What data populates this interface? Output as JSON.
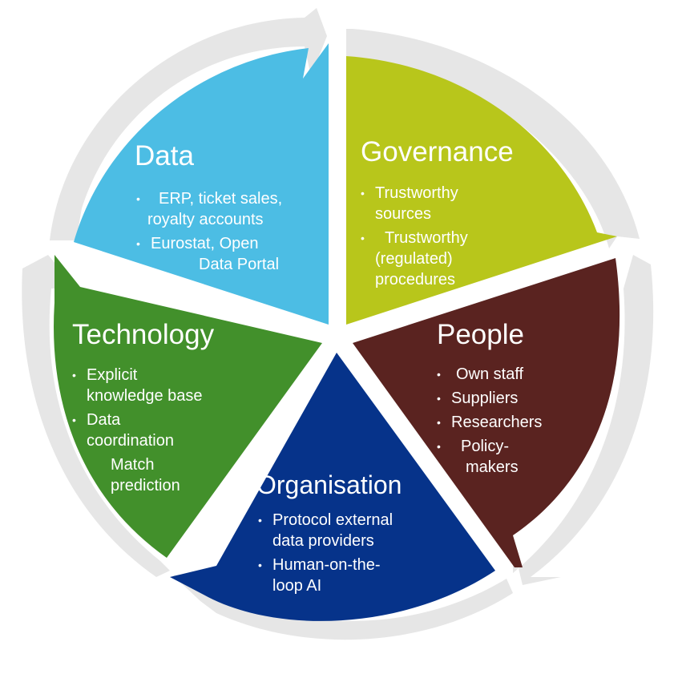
{
  "colors": {
    "ring": "#e6e6e6",
    "data": "#4cbde4",
    "governance": "#b8c61b",
    "people": "#5a2320",
    "organisation": "#06338a",
    "technology": "#42902b"
  },
  "segments": {
    "data": {
      "title": "Data",
      "bullets": [
        {
          "line1": "ERP, ticket sales,",
          "line2": "royalty accounts"
        },
        {
          "line1": "Eurostat, Open",
          "line2": "Data Portal"
        }
      ]
    },
    "governance": {
      "title": "Governance",
      "bullets": [
        {
          "line1": "Trustworthy",
          "line2": "sources"
        },
        {
          "line1": "Trustworthy",
          "line2": "(regulated)",
          "line3": "procedures"
        }
      ]
    },
    "people": {
      "title": "People",
      "bullets": [
        {
          "line1": "Own staff"
        },
        {
          "line1": "Suppliers"
        },
        {
          "line1": "Researchers"
        },
        {
          "line1": "Policy-",
          "line2": "makers"
        }
      ]
    },
    "organisation": {
      "title": "Organisation",
      "bullets": [
        {
          "line1": "Protocol external",
          "line2": "data providers"
        },
        {
          "line1": "Human-on-the-",
          "line2": "loop AI"
        }
      ]
    },
    "technology": {
      "title": "Technology",
      "bullets": [
        {
          "line1": "Explicit",
          "line2": "knowledge base"
        },
        {
          "line1": "Data",
          "line2": "coordination"
        },
        {
          "line1": "Match",
          "line2": "prediction"
        }
      ]
    }
  }
}
